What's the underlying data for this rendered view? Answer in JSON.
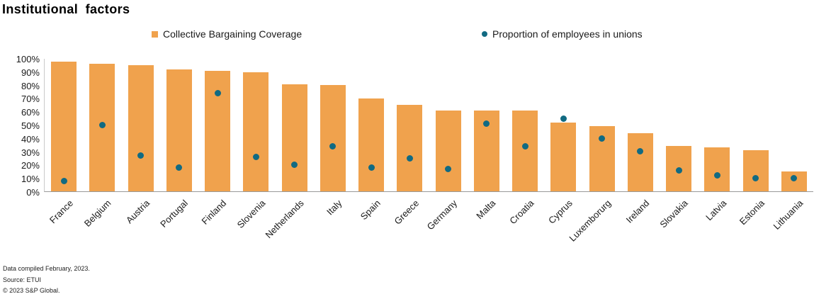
{
  "title": "Institutional factors",
  "legend": [
    {
      "label": "Collective Bargaining Coverage",
      "marker": "square",
      "color": "#F0A24D"
    },
    {
      "label": "Proportion of employees in unions",
      "marker": "circle",
      "color": "#116A82"
    }
  ],
  "colors": {
    "bar": "#F0A24D",
    "dot": "#116A82",
    "axis_line": "#9a9a9a",
    "text": "#1a1a1a"
  },
  "chart_data": {
    "type": "bar",
    "title": "Institutional factors",
    "categories": [
      "France",
      "Belgium",
      "Austria",
      "Portugal",
      "Finland",
      "Slovenia",
      "Netherlands",
      "Italy",
      "Spain",
      "Greece",
      "Germany",
      "Malta",
      "Croatia",
      "Cyprus",
      "Luxemborurg",
      "Ireland",
      "Slovakia",
      "Latvia",
      "Estonia",
      "Lithuania"
    ],
    "series": [
      {
        "name": "Collective Bargaining Coverage",
        "type": "bar",
        "values": [
          98,
          96,
          95,
          92,
          91,
          90,
          81,
          80,
          70,
          65,
          61,
          61,
          61,
          52,
          49,
          44,
          34,
          33,
          31,
          15
        ]
      },
      {
        "name": "Proportion of employees in unions",
        "type": "scatter",
        "values": [
          8,
          50,
          27,
          18,
          74,
          26,
          20,
          34,
          18,
          25,
          17,
          51,
          34,
          55,
          40,
          30,
          16,
          12,
          10,
          10
        ]
      }
    ],
    "xlabel": "",
    "ylabel": "",
    "ylim": [
      0,
      100
    ],
    "ytick_labels": [
      "0%",
      "10%",
      "20%",
      "30%",
      "40%",
      "50%",
      "60%",
      "70%",
      "80%",
      "90%",
      "100%"
    ],
    "grid": false,
    "legend_position": "top"
  },
  "footer": {
    "line1": "Data compiled February, 2023.",
    "line2": "Source: ETUI",
    "line3": "© 2023 S&P Global."
  }
}
